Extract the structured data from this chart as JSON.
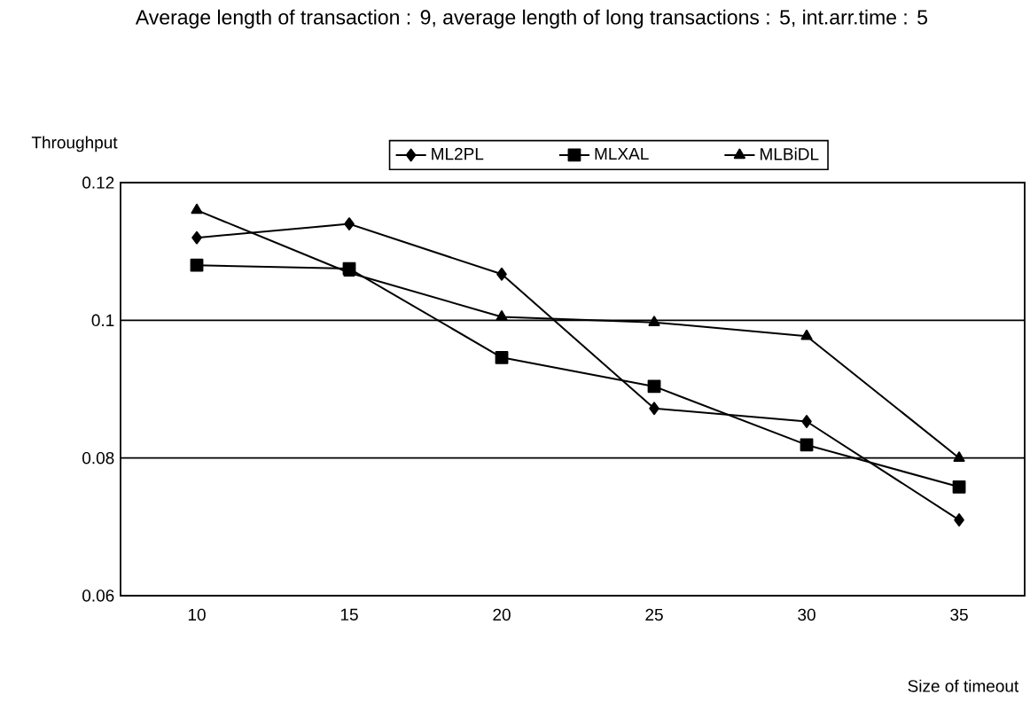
{
  "chart_data": {
    "type": "line",
    "title": "Average length of transaction : 9, average length of long transactions : 5, int.arr.time : 5",
    "xlabel": "Size of timeout",
    "ylabel": "Throughput",
    "categories": [
      "10",
      "15",
      "20",
      "25",
      "30",
      "35"
    ],
    "series": [
      {
        "name": "ML2PL",
        "color": "#000000",
        "marker": "diamond",
        "values": [
          0.112,
          0.114,
          0.1067,
          0.0872,
          0.0853,
          0.071
        ]
      },
      {
        "name": "MLXAL",
        "color": "#000000",
        "marker": "square",
        "values": [
          0.108,
          0.1075,
          0.0946,
          0.0904,
          0.0819,
          0.0758
        ]
      },
      {
        "name": "MLBiDL",
        "color": "#000000",
        "marker": "triangle",
        "values": [
          0.116,
          0.1069,
          0.1005,
          0.0997,
          0.0977,
          0.08
        ]
      }
    ],
    "ylim": [
      0.06,
      0.12
    ],
    "yticks": [
      {
        "value": 0.06,
        "label": "0.06"
      },
      {
        "value": 0.08,
        "label": "0.08"
      },
      {
        "value": 0.1,
        "label": "0.1"
      },
      {
        "value": 0.12,
        "label": "0.12"
      }
    ],
    "grid": "y",
    "legend": "top"
  }
}
